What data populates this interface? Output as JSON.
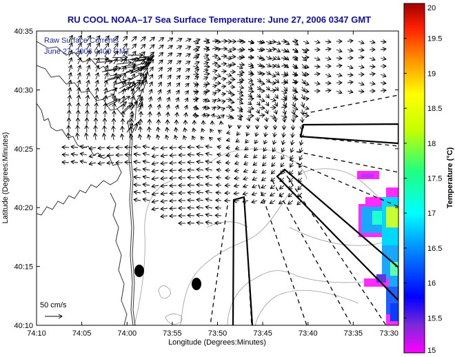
{
  "title": "RU COOL   NOAA–17  Sea Surface Temperature:  June 27, 2006 0347 GMT",
  "annotation": {
    "line1": "Raw Surface Currents",
    "line2": "June 27, 2006 0400 GMT"
  },
  "scale_label": "50 cm/s",
  "axes": {
    "xlabel": "Longitude (Degrees:Minutes)",
    "ylabel": "Latitude (Degrees:Minutes)",
    "xticks": [
      "74:10",
      "74:05",
      "74:00",
      "73:55",
      "73:50",
      "73:45",
      "73:40",
      "73:35",
      "73:30"
    ],
    "yticks": [
      "40:35",
      "40:30",
      "40:25",
      "40:20",
      "40:15",
      "40:10"
    ]
  },
  "colorbar": {
    "label": "Temperature (°C)",
    "ticks": [
      "20",
      "19.5",
      "19",
      "18.5",
      "18",
      "17.5",
      "17",
      "16.5",
      "16",
      "15.5",
      "15"
    ],
    "min": 15,
    "max": 20
  },
  "colors": {
    "title": "#1010a0",
    "annotation": "#1e2a9a",
    "coastline": "#333333",
    "bathymetry": "#9a9a9a",
    "vectors": "#000000"
  }
}
